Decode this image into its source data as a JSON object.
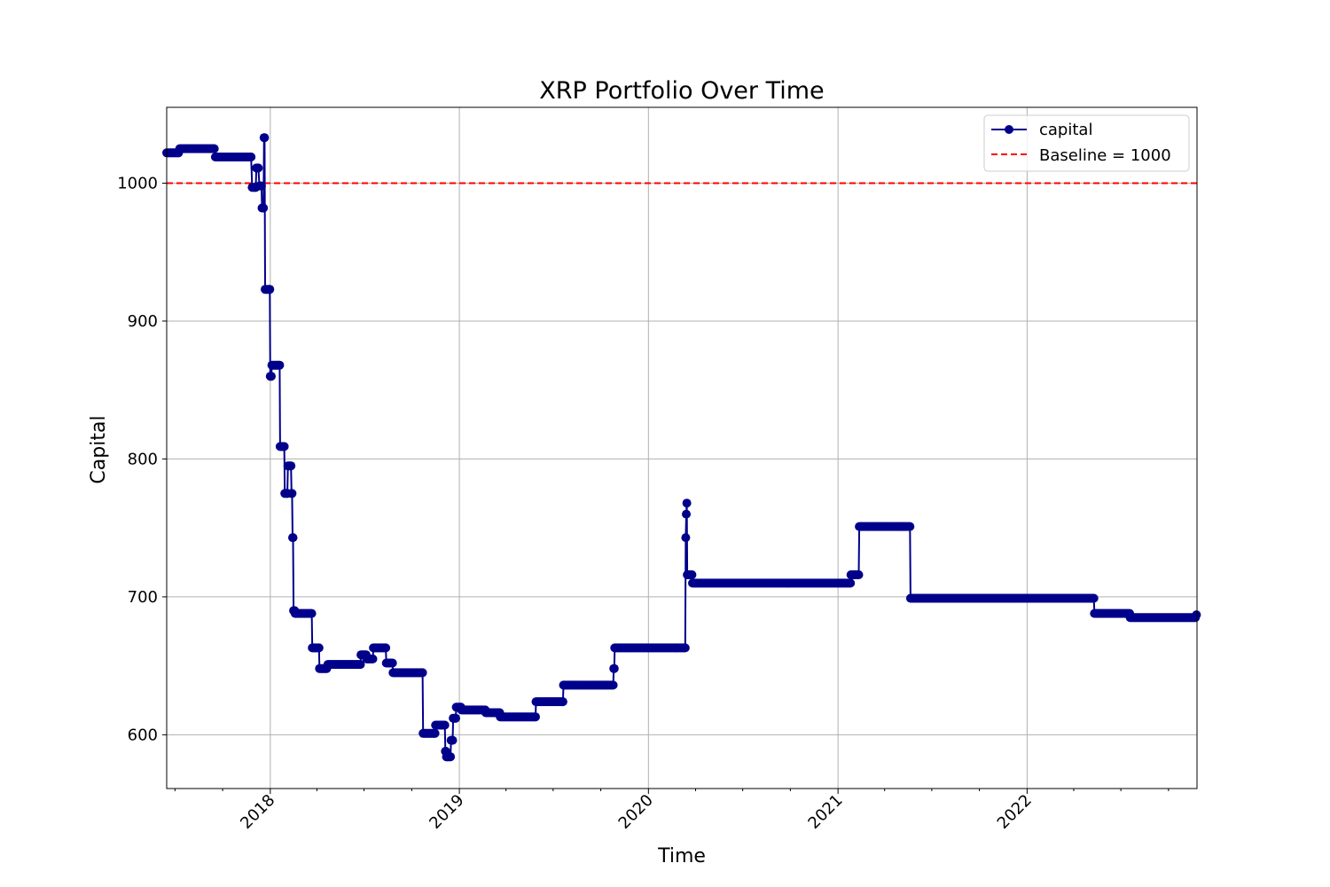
{
  "chart_data": {
    "type": "line",
    "title": "XRP Portfolio Over Time",
    "xlabel": "Time",
    "ylabel": "Capital",
    "x_ticks": [
      "2018",
      "2019",
      "2020",
      "2021",
      "2022"
    ],
    "y_ticks": [
      "600",
      "700",
      "800",
      "900",
      "1000"
    ],
    "xlim": [
      "2017-06-15",
      "2022-11-25"
    ],
    "ylim": [
      561,
      1055
    ],
    "grid": true,
    "legend_position": "top-right",
    "legend": [
      "capital",
      "Baseline = 1000"
    ],
    "colors": {
      "capital": "#00008b",
      "baseline": "#ff0000",
      "grid": "#b0b0b0"
    },
    "baseline": {
      "name": "Baseline = 1000",
      "value": 1000
    },
    "series": [
      {
        "name": "capital",
        "points": [
          [
            "2017-06-15",
            1022
          ],
          [
            "2017-07-08",
            1022
          ],
          [
            "2017-07-10",
            1025
          ],
          [
            "2017-09-15",
            1025
          ],
          [
            "2017-09-17",
            1019
          ],
          [
            "2017-11-25",
            1019
          ],
          [
            "2017-11-27",
            997
          ],
          [
            "2017-12-04",
            997
          ],
          [
            "2017-12-05",
            1011
          ],
          [
            "2017-12-09",
            1011
          ],
          [
            "2017-12-11",
            998
          ],
          [
            "2017-12-15",
            998
          ],
          [
            "2017-12-16",
            982
          ],
          [
            "2017-12-19",
            982
          ],
          [
            "2017-12-20",
            1033
          ],
          [
            "2017-12-21",
            1033
          ],
          [
            "2017-12-22",
            923
          ],
          [
            "2017-12-31",
            923
          ],
          [
            "2018-01-01",
            860
          ],
          [
            "2018-01-03",
            860
          ],
          [
            "2018-01-04",
            868
          ],
          [
            "2018-01-19",
            868
          ],
          [
            "2018-01-20",
            809
          ],
          [
            "2018-01-28",
            809
          ],
          [
            "2018-01-29",
            775
          ],
          [
            "2018-02-03",
            775
          ],
          [
            "2018-02-04",
            795
          ],
          [
            "2018-02-10",
            795
          ],
          [
            "2018-02-11",
            775
          ],
          [
            "2018-02-12",
            775
          ],
          [
            "2018-02-13",
            743
          ],
          [
            "2018-02-14",
            743
          ],
          [
            "2018-02-15",
            690
          ],
          [
            "2018-02-17",
            690
          ],
          [
            "2018-02-18",
            688
          ],
          [
            "2018-03-22",
            688
          ],
          [
            "2018-03-23",
            663
          ],
          [
            "2018-04-05",
            663
          ],
          [
            "2018-04-06",
            648
          ],
          [
            "2018-04-20",
            648
          ],
          [
            "2018-04-22",
            651
          ],
          [
            "2018-06-24",
            651
          ],
          [
            "2018-06-25",
            658
          ],
          [
            "2018-07-05",
            658
          ],
          [
            "2018-07-06",
            655
          ],
          [
            "2018-07-18",
            655
          ],
          [
            "2018-07-19",
            663
          ],
          [
            "2018-08-12",
            663
          ],
          [
            "2018-08-13",
            652
          ],
          [
            "2018-08-25",
            652
          ],
          [
            "2018-08-26",
            645
          ],
          [
            "2018-10-22",
            645
          ],
          [
            "2018-10-23",
            601
          ],
          [
            "2018-11-15",
            601
          ],
          [
            "2018-11-16",
            607
          ],
          [
            "2018-12-04",
            607
          ],
          [
            "2018-12-05",
            588
          ],
          [
            "2018-12-06",
            588
          ],
          [
            "2018-12-07",
            584
          ],
          [
            "2018-12-15",
            584
          ],
          [
            "2018-12-16",
            596
          ],
          [
            "2018-12-19",
            596
          ],
          [
            "2018-12-20",
            612
          ],
          [
            "2018-12-25",
            612
          ],
          [
            "2018-12-26",
            620
          ],
          [
            "2019-01-04",
            620
          ],
          [
            "2019-01-05",
            618
          ],
          [
            "2019-02-20",
            618
          ],
          [
            "2019-02-21",
            616
          ],
          [
            "2019-03-20",
            616
          ],
          [
            "2019-03-21",
            613
          ],
          [
            "2019-05-28",
            613
          ],
          [
            "2019-05-29",
            624
          ],
          [
            "2019-07-20",
            624
          ],
          [
            "2019-07-21",
            636
          ],
          [
            "2019-10-25",
            636
          ],
          [
            "2019-10-26",
            648
          ],
          [
            "2019-10-27",
            648
          ],
          [
            "2019-10-28",
            663
          ],
          [
            "2020-03-12",
            663
          ],
          [
            "2020-03-13",
            743
          ],
          [
            "2020-03-14",
            760
          ],
          [
            "2020-03-15",
            768
          ],
          [
            "2020-03-16",
            716
          ],
          [
            "2020-03-25",
            716
          ],
          [
            "2020-03-26",
            710
          ],
          [
            "2021-01-25",
            710
          ],
          [
            "2021-01-26",
            716
          ],
          [
            "2021-02-10",
            716
          ],
          [
            "2021-02-11",
            751
          ],
          [
            "2021-05-20",
            751
          ],
          [
            "2021-05-21",
            699
          ],
          [
            "2022-05-10",
            699
          ],
          [
            "2022-05-11",
            688
          ],
          [
            "2022-07-18",
            688
          ],
          [
            "2022-07-19",
            685
          ],
          [
            "2022-11-22",
            685
          ],
          [
            "2022-11-24",
            687
          ]
        ]
      }
    ]
  }
}
